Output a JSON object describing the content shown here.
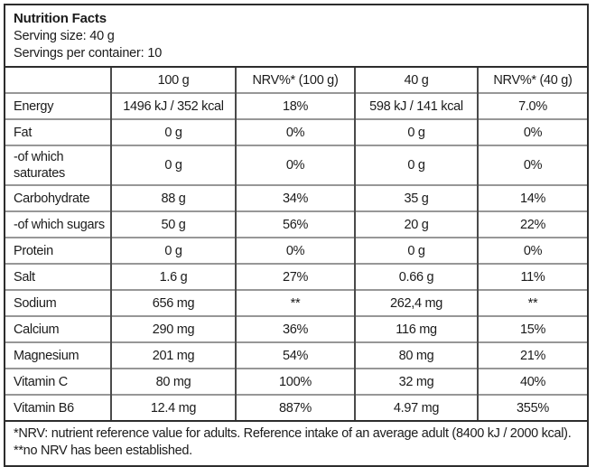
{
  "header": {
    "title": "Nutrition Facts",
    "serving_size": "Serving size: 40 g",
    "servings_per_container": "Servings per container: 10"
  },
  "table": {
    "columns": [
      "",
      "100 g",
      "NRV%* (100 g)",
      "40 g",
      "NRV%* (40 g)"
    ],
    "rows": [
      {
        "cells": [
          "Energy",
          "1496 kJ / 352 kcal",
          "18%",
          "598 kJ / 141 kcal",
          "7.0%"
        ]
      },
      {
        "cells": [
          "Fat",
          "0 g",
          "0%",
          "0 g",
          "0%"
        ]
      },
      {
        "cells": [
          "-of which saturates",
          "0 g",
          "0%",
          "0 g",
          "0%"
        ]
      },
      {
        "cells": [
          "Carbohydrate",
          "88 g",
          "34%",
          "35 g",
          "14%"
        ]
      },
      {
        "cells": [
          "-of which sugars",
          "50 g",
          "56%",
          "20 g",
          "22%"
        ]
      },
      {
        "cells": [
          "Protein",
          "0 g",
          "0%",
          "0 g",
          "0%"
        ]
      },
      {
        "cells": [
          "Salt",
          "1.6 g",
          "27%",
          "0.66 g",
          "11%"
        ]
      },
      {
        "cells": [
          "Sodium",
          "656 mg",
          "**",
          "262,4 mg",
          "**"
        ]
      },
      {
        "cells": [
          "Calcium",
          "290 mg",
          "36%",
          "116 mg",
          "15%"
        ]
      },
      {
        "cells": [
          "Magnesium",
          "201 mg",
          "54%",
          "80 mg",
          "21%"
        ]
      },
      {
        "cells": [
          "Vitamin C",
          "80 mg",
          "100%",
          "32 mg",
          "40%"
        ]
      },
      {
        "cells": [
          "Vitamin B6",
          "12.4 mg",
          "887%",
          "4.97 mg",
          "355%"
        ]
      }
    ]
  },
  "footnote": "*NRV: nutrient reference value for adults. Reference intake of an average adult (8400 kJ / 2000 kcal). **no NRV has been established.",
  "colors": {
    "background": "#ffffff",
    "text": "#1b1b1b",
    "border_outer": "#2d2d2d",
    "border_vertical": "#4a4a4a",
    "border_horizontal": "#979797"
  }
}
